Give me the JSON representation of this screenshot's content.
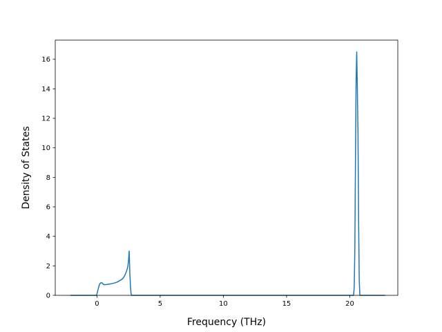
{
  "chart_data": {
    "type": "line",
    "xlabel": "Frequency (THz)",
    "ylabel": "Density of States",
    "xlim": [
      -3.3,
      23.8
    ],
    "ylim": [
      0,
      17.3
    ],
    "xticks": [
      0,
      5,
      10,
      15,
      20
    ],
    "yticks": [
      0,
      2,
      4,
      6,
      8,
      10,
      12,
      14,
      16
    ],
    "grid": false,
    "series": [
      {
        "color": "#1f77b4",
        "x": [
          -2.1,
          -0.05,
          0.0,
          0.1,
          0.2,
          0.3,
          0.4,
          0.5,
          0.6,
          0.8,
          1.0,
          1.2,
          1.4,
          1.6,
          1.8,
          2.0,
          2.1,
          2.2,
          2.3,
          2.4,
          2.45,
          2.5,
          2.55,
          2.6,
          2.65,
          2.7,
          2.75,
          2.8,
          5.0,
          10.0,
          15.0,
          20.3,
          20.35,
          20.4,
          20.45,
          20.5,
          20.55,
          20.6,
          20.65,
          20.7,
          20.75,
          20.8,
          22.8
        ],
        "y": [
          0,
          0,
          0.1,
          0.45,
          0.75,
          0.85,
          0.85,
          0.75,
          0.72,
          0.74,
          0.77,
          0.8,
          0.84,
          0.9,
          1.0,
          1.1,
          1.2,
          1.35,
          1.55,
          1.8,
          2.0,
          2.4,
          3.0,
          1.5,
          0.6,
          0.1,
          0.0,
          0.0,
          0.0,
          0.0,
          0.0,
          0.0,
          0.5,
          3.0,
          9.0,
          14.5,
          16.5,
          14.0,
          11.0,
          5.0,
          1.0,
          0.0,
          0.0
        ]
      }
    ]
  }
}
